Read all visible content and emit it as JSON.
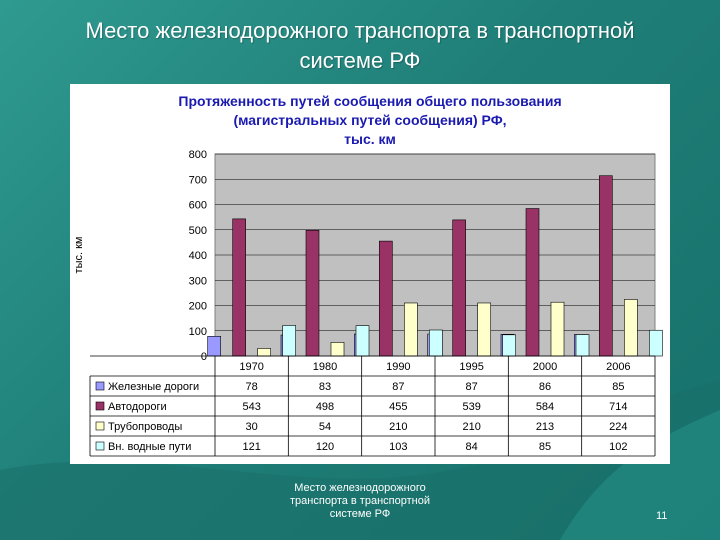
{
  "slide": {
    "title_line1": "Место железнодорожного транспорта в транспортной",
    "title_line2": "системе РФ",
    "footer_line1": "Место железнодорожного",
    "footer_line2": "транспорта в транспортной",
    "footer_line3": "системе РФ",
    "page_number": "11"
  },
  "colors": {
    "background": "#1f7f78",
    "chart_title": "#1a1ab0",
    "plot_area": "#c0c0c0",
    "series": [
      "#9999ff",
      "#993366",
      "#ffffcc",
      "#ccffff"
    ]
  },
  "chart_data": {
    "type": "bar",
    "title_lines": [
      "Протяженность путей сообщения общего пользования",
      "(магистральных путей сообщения) РФ,",
      "тыс. км"
    ],
    "ylabel": "тыс. км",
    "xlabel": "",
    "ylim": [
      0,
      800
    ],
    "yticks": [
      0,
      100,
      200,
      300,
      400,
      500,
      600,
      700,
      800
    ],
    "grid": true,
    "legend_position": "data-table-bottom",
    "categories": [
      "1970",
      "1980",
      "1990",
      "1995",
      "2000",
      "2006"
    ],
    "series": [
      {
        "name": "Железные дороги",
        "values": [
          78,
          83,
          87,
          87,
          86,
          85
        ]
      },
      {
        "name": "Автодороги",
        "values": [
          543,
          498,
          455,
          539,
          584,
          714
        ]
      },
      {
        "name": "Трубопроводы",
        "values": [
          30,
          54,
          210,
          210,
          213,
          224
        ]
      },
      {
        "name": "Вн. водные пути",
        "values": [
          121,
          120,
          103,
          84,
          85,
          102
        ]
      }
    ]
  }
}
